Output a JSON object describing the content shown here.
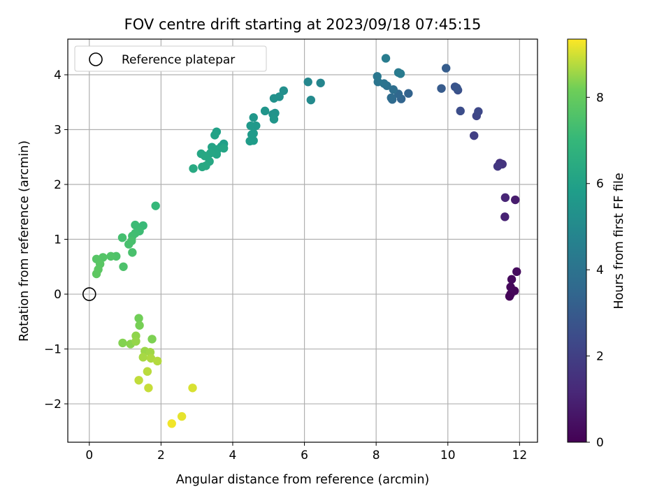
{
  "chart_data": {
    "type": "scatter",
    "title": "FOV centre drift starting at 2023/09/18 07:45:15",
    "xlabel": "Angular distance from reference (arcmin)",
    "ylabel": "Rotation from reference (arcmin)",
    "xlim": [
      -0.6,
      12.5
    ],
    "ylim": [
      -2.7,
      4.65
    ],
    "xticks": [
      0,
      2,
      4,
      6,
      8,
      10,
      12
    ],
    "xtick_labels": [
      "0",
      "2",
      "4",
      "6",
      "8",
      "10",
      "12"
    ],
    "yticks": [
      -2,
      -1,
      0,
      1,
      2,
      3,
      4
    ],
    "ytick_labels": [
      "−2",
      "−1",
      "0",
      "1",
      "2",
      "3",
      "4"
    ],
    "grid": true,
    "legend": {
      "placement": "upper-left",
      "entries": [
        "Reference platepar"
      ]
    },
    "reference_point": {
      "x": 0,
      "y": 0,
      "label": "Reference platepar"
    },
    "colorbar": {
      "label": "Hours from first FF file",
      "colormap": "viridis",
      "range": [
        0,
        9.35
      ],
      "ticks": [
        0,
        2,
        4,
        6,
        8
      ],
      "tick_labels": [
        "0",
        "2",
        "4",
        "6",
        "8"
      ]
    },
    "series": [
      {
        "color_by": "hours",
        "points": [
          {
            "x": 11.75,
            "y": 0.0,
            "c": 0.05
          },
          {
            "x": 11.72,
            "y": -0.04,
            "c": 0.1
          },
          {
            "x": 11.86,
            "y": 0.06,
            "c": 0.15
          },
          {
            "x": 11.75,
            "y": 0.13,
            "c": 0.2
          },
          {
            "x": 11.78,
            "y": 0.27,
            "c": 0.25
          },
          {
            "x": 11.92,
            "y": 0.41,
            "c": 0.3
          },
          {
            "x": 11.88,
            "y": 1.72,
            "c": 0.8
          },
          {
            "x": 11.59,
            "y": 1.41,
            "c": 1.0
          },
          {
            "x": 11.6,
            "y": 1.76,
            "c": 1.1
          },
          {
            "x": 11.45,
            "y": 2.39,
            "c": 1.5
          },
          {
            "x": 11.52,
            "y": 2.37,
            "c": 1.6
          },
          {
            "x": 11.39,
            "y": 2.33,
            "c": 1.7
          },
          {
            "x": 10.73,
            "y": 2.89,
            "c": 2.0
          },
          {
            "x": 10.8,
            "y": 3.25,
            "c": 2.2
          },
          {
            "x": 10.85,
            "y": 3.33,
            "c": 2.3
          },
          {
            "x": 10.35,
            "y": 3.34,
            "c": 2.5
          },
          {
            "x": 10.28,
            "y": 3.72,
            "c": 2.6
          },
          {
            "x": 10.2,
            "y": 3.78,
            "c": 2.7
          },
          {
            "x": 10.25,
            "y": 3.76,
            "c": 2.8
          },
          {
            "x": 9.82,
            "y": 3.75,
            "c": 3.0
          },
          {
            "x": 9.95,
            "y": 4.12,
            "c": 3.1
          },
          {
            "x": 8.9,
            "y": 3.66,
            "c": 3.3
          },
          {
            "x": 8.7,
            "y": 3.56,
            "c": 3.4
          },
          {
            "x": 8.62,
            "y": 3.65,
            "c": 3.5
          },
          {
            "x": 8.45,
            "y": 3.55,
            "c": 3.6
          },
          {
            "x": 8.42,
            "y": 3.58,
            "c": 3.7
          },
          {
            "x": 8.48,
            "y": 3.73,
            "c": 3.8
          },
          {
            "x": 8.3,
            "y": 3.8,
            "c": 3.9
          },
          {
            "x": 8.22,
            "y": 3.84,
            "c": 4.0
          },
          {
            "x": 8.05,
            "y": 3.87,
            "c": 4.1
          },
          {
            "x": 8.03,
            "y": 3.97,
            "c": 4.2
          },
          {
            "x": 8.62,
            "y": 4.04,
            "c": 4.3
          },
          {
            "x": 8.68,
            "y": 4.02,
            "c": 4.35
          },
          {
            "x": 8.27,
            "y": 4.3,
            "c": 4.4
          },
          {
            "x": 6.45,
            "y": 3.85,
            "c": 4.8
          },
          {
            "x": 6.1,
            "y": 3.87,
            "c": 4.9
          },
          {
            "x": 6.18,
            "y": 3.54,
            "c": 5.0
          },
          {
            "x": 5.42,
            "y": 3.71,
            "c": 5.2
          },
          {
            "x": 5.3,
            "y": 3.6,
            "c": 5.25
          },
          {
            "x": 5.15,
            "y": 3.57,
            "c": 5.3
          },
          {
            "x": 5.12,
            "y": 3.28,
            "c": 5.35
          },
          {
            "x": 5.18,
            "y": 3.3,
            "c": 5.4
          },
          {
            "x": 4.9,
            "y": 3.34,
            "c": 5.45
          },
          {
            "x": 5.15,
            "y": 3.19,
            "c": 5.5
          },
          {
            "x": 4.58,
            "y": 3.22,
            "c": 5.55
          },
          {
            "x": 4.65,
            "y": 3.07,
            "c": 5.6
          },
          {
            "x": 4.5,
            "y": 3.07,
            "c": 5.65
          },
          {
            "x": 4.58,
            "y": 2.93,
            "c": 5.7
          },
          {
            "x": 4.53,
            "y": 2.91,
            "c": 5.72
          },
          {
            "x": 4.48,
            "y": 2.79,
            "c": 5.75
          },
          {
            "x": 4.58,
            "y": 2.8,
            "c": 5.78
          },
          {
            "x": 3.75,
            "y": 2.74,
            "c": 5.9
          },
          {
            "x": 3.68,
            "y": 2.69,
            "c": 5.95
          },
          {
            "x": 3.55,
            "y": 2.96,
            "c": 6.0
          },
          {
            "x": 3.5,
            "y": 2.9,
            "c": 6.05
          },
          {
            "x": 3.42,
            "y": 2.68,
            "c": 6.1
          },
          {
            "x": 3.58,
            "y": 2.64,
            "c": 6.12
          },
          {
            "x": 3.75,
            "y": 2.66,
            "c": 6.15
          },
          {
            "x": 3.55,
            "y": 2.55,
            "c": 6.18
          },
          {
            "x": 3.38,
            "y": 2.57,
            "c": 6.2
          },
          {
            "x": 3.12,
            "y": 2.56,
            "c": 6.22
          },
          {
            "x": 3.22,
            "y": 2.52,
            "c": 6.25
          },
          {
            "x": 3.35,
            "y": 2.42,
            "c": 6.28
          },
          {
            "x": 3.25,
            "y": 2.34,
            "c": 6.3
          },
          {
            "x": 3.15,
            "y": 2.32,
            "c": 6.32
          },
          {
            "x": 2.9,
            "y": 2.29,
            "c": 6.35
          },
          {
            "x": 1.85,
            "y": 1.61,
            "c": 7.0
          },
          {
            "x": 1.5,
            "y": 1.25,
            "c": 7.1
          },
          {
            "x": 1.28,
            "y": 1.26,
            "c": 7.15
          },
          {
            "x": 1.4,
            "y": 1.15,
            "c": 7.2
          },
          {
            "x": 1.28,
            "y": 1.11,
            "c": 7.25
          },
          {
            "x": 1.2,
            "y": 1.06,
            "c": 7.3
          },
          {
            "x": 0.92,
            "y": 1.03,
            "c": 7.35
          },
          {
            "x": 1.1,
            "y": 0.91,
            "c": 7.4
          },
          {
            "x": 1.18,
            "y": 0.97,
            "c": 7.42
          },
          {
            "x": 1.2,
            "y": 0.76,
            "c": 7.45
          },
          {
            "x": 0.95,
            "y": 0.5,
            "c": 7.5
          },
          {
            "x": 0.75,
            "y": 0.69,
            "c": 7.55
          },
          {
            "x": 0.6,
            "y": 0.69,
            "c": 7.6
          },
          {
            "x": 0.38,
            "y": 0.67,
            "c": 7.65
          },
          {
            "x": 0.2,
            "y": 0.64,
            "c": 7.7
          },
          {
            "x": 0.3,
            "y": 0.55,
            "c": 7.75
          },
          {
            "x": 0.25,
            "y": 0.45,
            "c": 7.8
          },
          {
            "x": 0.2,
            "y": 0.37,
            "c": 7.85
          },
          {
            "x": 1.38,
            "y": -0.44,
            "c": 8.2
          },
          {
            "x": 1.4,
            "y": -0.57,
            "c": 8.25
          },
          {
            "x": 1.75,
            "y": -0.82,
            "c": 8.3
          },
          {
            "x": 0.93,
            "y": -0.89,
            "c": 8.35
          },
          {
            "x": 1.15,
            "y": -0.91,
            "c": 8.4
          },
          {
            "x": 1.3,
            "y": -0.76,
            "c": 8.45
          },
          {
            "x": 1.3,
            "y": -0.86,
            "c": 8.5
          },
          {
            "x": 1.55,
            "y": -1.04,
            "c": 8.55
          },
          {
            "x": 1.7,
            "y": -1.06,
            "c": 8.6
          },
          {
            "x": 1.5,
            "y": -1.15,
            "c": 8.65
          },
          {
            "x": 1.72,
            "y": -1.17,
            "c": 8.7
          },
          {
            "x": 1.9,
            "y": -1.22,
            "c": 8.75
          },
          {
            "x": 1.62,
            "y": -1.41,
            "c": 8.8
          },
          {
            "x": 1.38,
            "y": -1.57,
            "c": 8.85
          },
          {
            "x": 1.65,
            "y": -1.71,
            "c": 8.9
          },
          {
            "x": 2.88,
            "y": -1.71,
            "c": 9.05
          },
          {
            "x": 2.58,
            "y": -2.23,
            "c": 9.15
          },
          {
            "x": 2.3,
            "y": -2.36,
            "c": 9.25
          }
        ]
      }
    ]
  }
}
